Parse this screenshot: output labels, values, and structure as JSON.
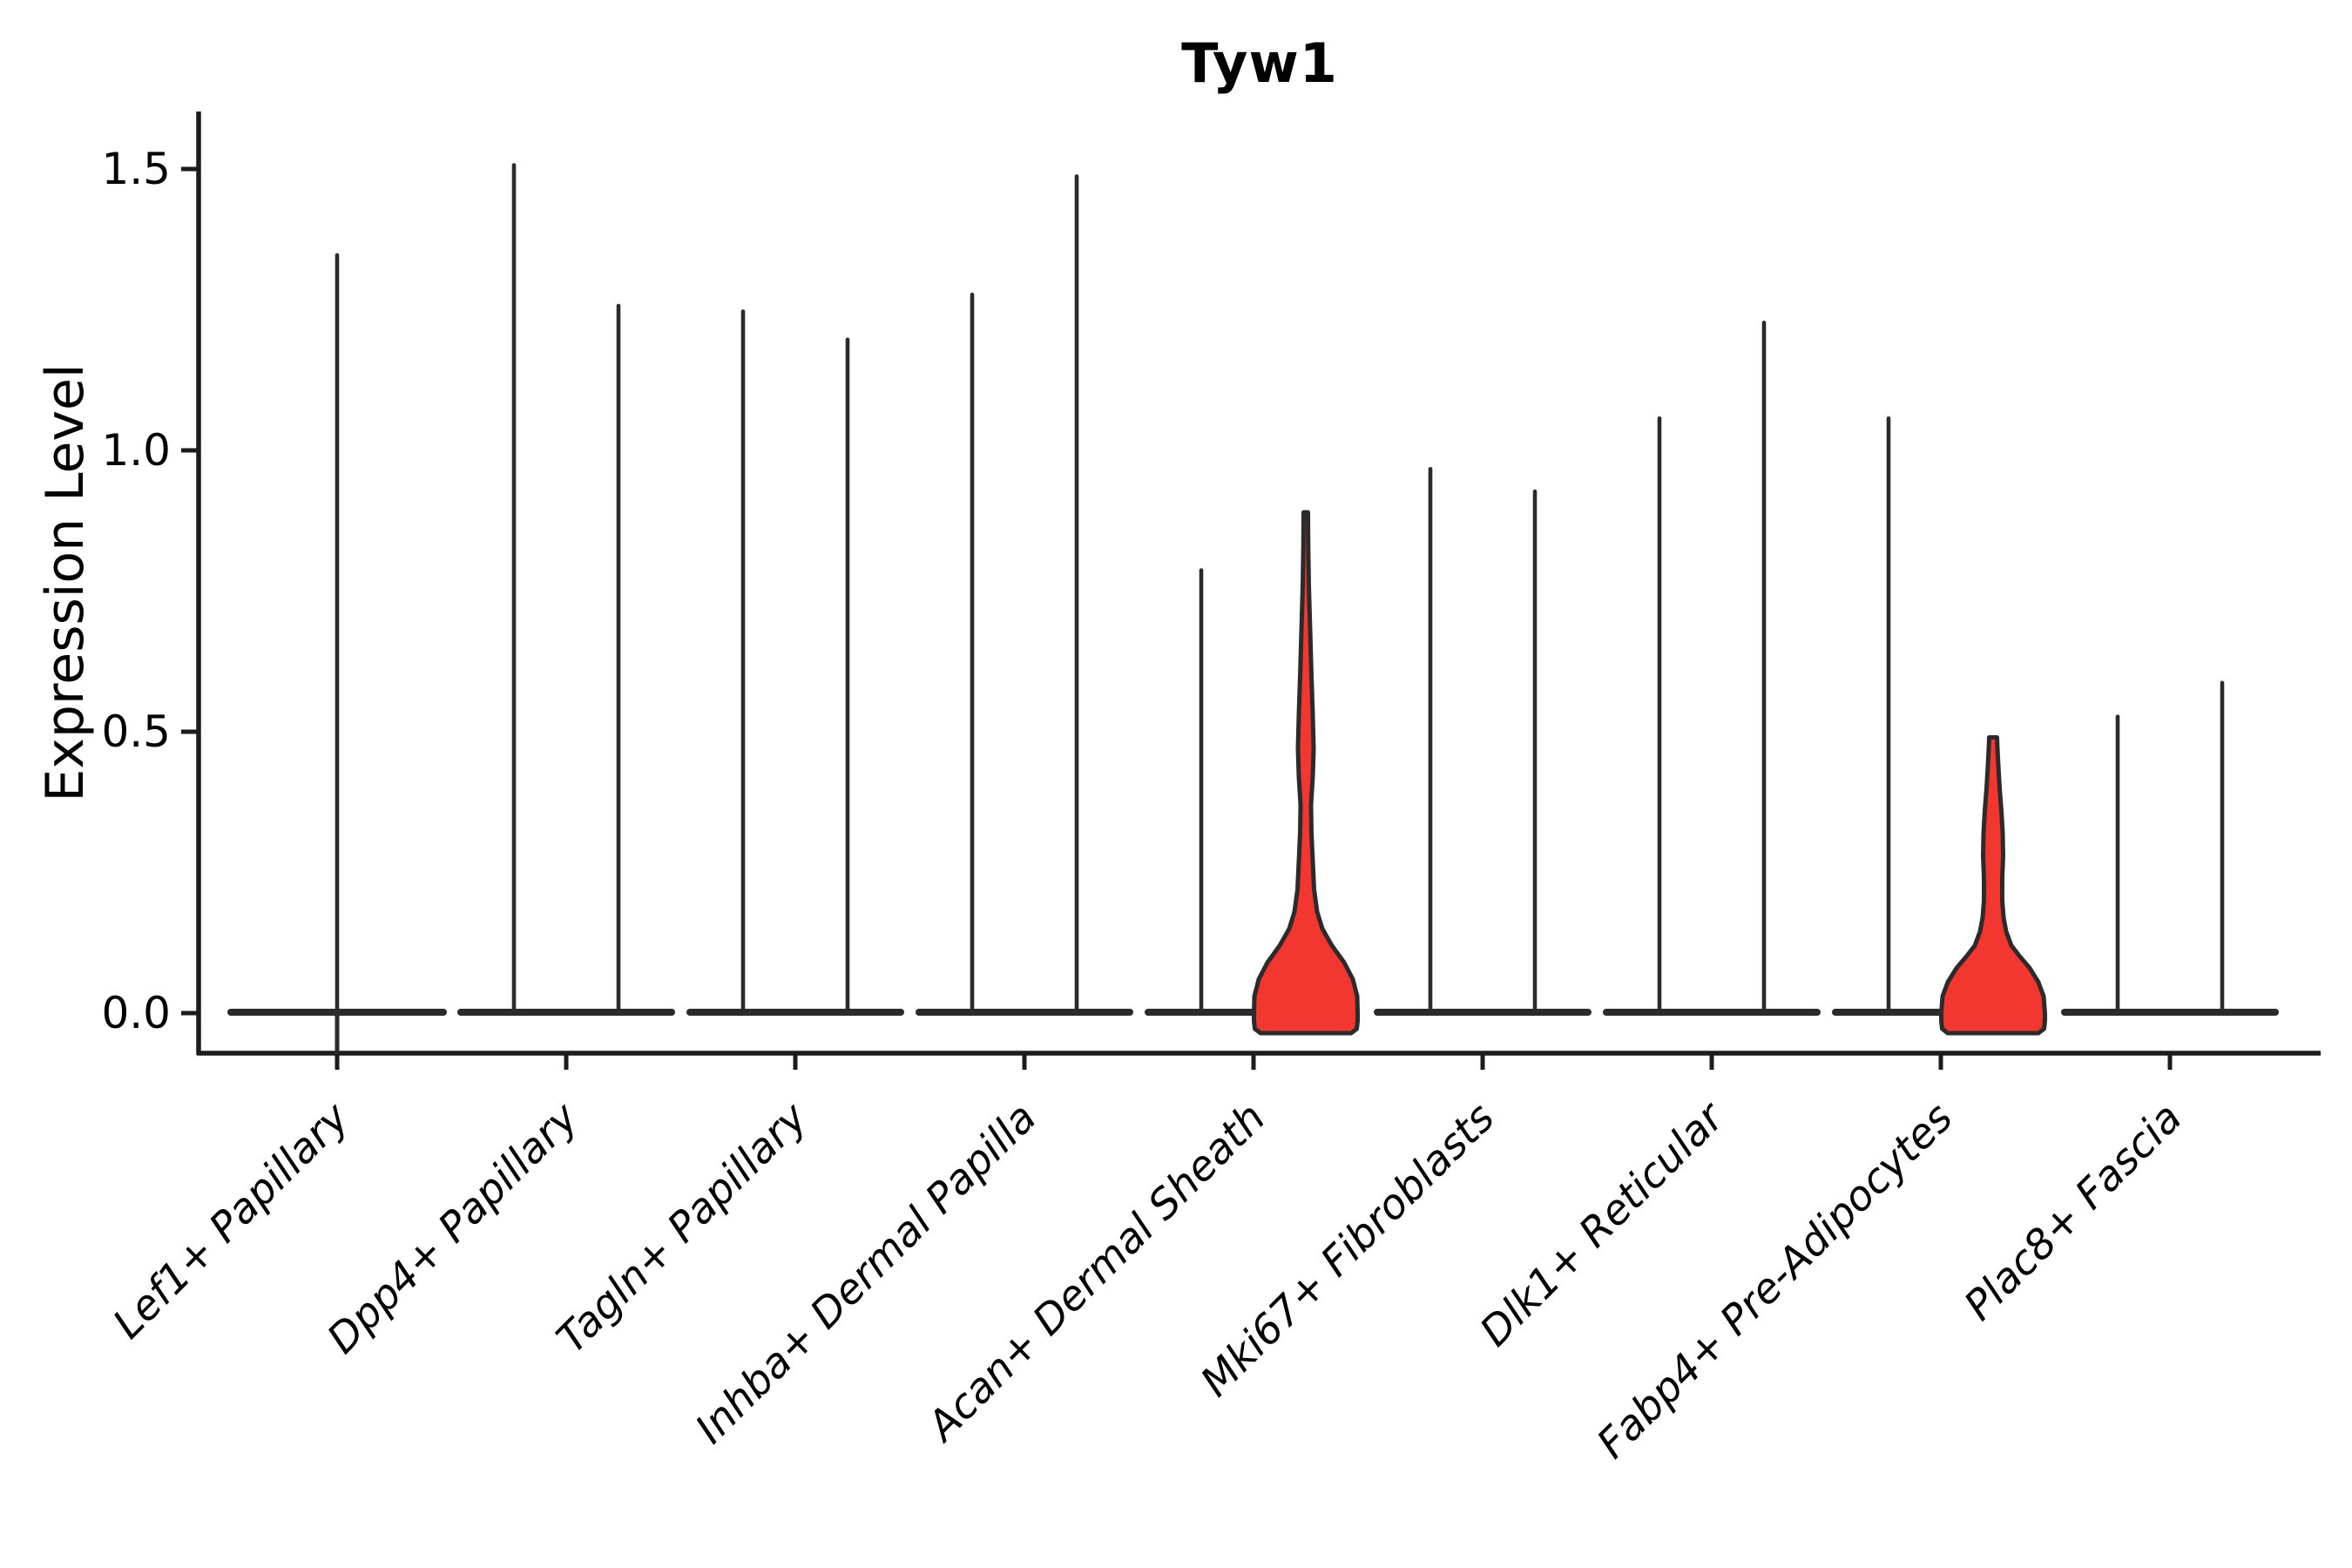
{
  "chart_data": {
    "type": "violin",
    "title": "Tyw1",
    "ylabel": "Expression Level",
    "xlabel": "",
    "yticks": [
      "0.0",
      "0.5",
      "1.0",
      "1.5"
    ],
    "ylim": [
      -0.07,
      1.6
    ],
    "x_tick_rotation": 45,
    "grid": "off",
    "legend": "none",
    "colors": {
      "outline": "#2b2b2b",
      "highlight_fill": "#f23730",
      "text": "#000000",
      "background": "#ffffff"
    },
    "categories": [
      {
        "label": "Lef1+ Papillary",
        "violins": [
          {
            "max": 1.35,
            "style": "spike",
            "span": "full"
          }
        ]
      },
      {
        "label": "Dpp4+ Papillary",
        "violins": [
          {
            "max": 1.51,
            "style": "spike"
          },
          {
            "max": 1.26,
            "style": "spike"
          }
        ]
      },
      {
        "label": "Tagln+ Papillary",
        "violins": [
          {
            "max": 1.25,
            "style": "spike"
          },
          {
            "max": 1.2,
            "style": "spike"
          }
        ]
      },
      {
        "label": "Inhba+ Dermal Papilla",
        "violins": [
          {
            "max": 1.28,
            "style": "spike"
          },
          {
            "max": 1.49,
            "style": "spike"
          }
        ]
      },
      {
        "label": "Acan+ Dermal Sheath",
        "violins": [
          {
            "max": 0.79,
            "style": "spike"
          },
          {
            "max": 0.89,
            "style": "filled",
            "profile": [
              [
                0.0,
                59.5
              ],
              [
                0.03,
                59
              ],
              [
                0.06,
                54
              ],
              [
                0.09,
                44
              ],
              [
                0.12,
                30
              ],
              [
                0.15,
                19
              ],
              [
                0.18,
                13
              ],
              [
                0.22,
                9.5
              ],
              [
                0.27,
                8
              ],
              [
                0.32,
                6.5
              ],
              [
                0.37,
                6
              ],
              [
                0.42,
                8
              ],
              [
                0.47,
                9
              ],
              [
                0.53,
                8
              ],
              [
                0.6,
                6.5
              ],
              [
                0.68,
                5
              ],
              [
                0.76,
                3.5
              ],
              [
                0.83,
                2.8
              ],
              [
                0.89,
                2.5
              ]
            ]
          }
        ]
      },
      {
        "label": "Mki67+ Fibroblasts",
        "violins": [
          {
            "max": 0.97,
            "style": "spike"
          },
          {
            "max": 0.93,
            "style": "spike"
          }
        ]
      },
      {
        "label": "Dlk1+ Reticular",
        "violins": [
          {
            "max": 1.06,
            "style": "spike"
          },
          {
            "max": 1.23,
            "style": "spike"
          }
        ]
      },
      {
        "label": "Fabp4+ Pre-Adipocytes",
        "violins": [
          {
            "max": 1.06,
            "style": "spike"
          },
          {
            "max": 0.49,
            "style": "filled",
            "profile": [
              [
                0.0,
                59.5
              ],
              [
                0.03,
                58
              ],
              [
                0.055,
                52
              ],
              [
                0.08,
                42
              ],
              [
                0.1,
                31
              ],
              [
                0.12,
                21
              ],
              [
                0.145,
                15
              ],
              [
                0.17,
                12
              ],
              [
                0.2,
                10.5
              ],
              [
                0.24,
                10.5
              ],
              [
                0.28,
                11.5
              ],
              [
                0.32,
                11
              ],
              [
                0.36,
                9.5
              ],
              [
                0.4,
                7.5
              ],
              [
                0.44,
                6
              ],
              [
                0.47,
                5
              ],
              [
                0.49,
                4.5
              ]
            ]
          }
        ]
      },
      {
        "label": "Plac8+ Fascia",
        "violins": [
          {
            "max": 0.53,
            "style": "spike"
          },
          {
            "max": 0.59,
            "style": "spike"
          }
        ]
      }
    ]
  }
}
